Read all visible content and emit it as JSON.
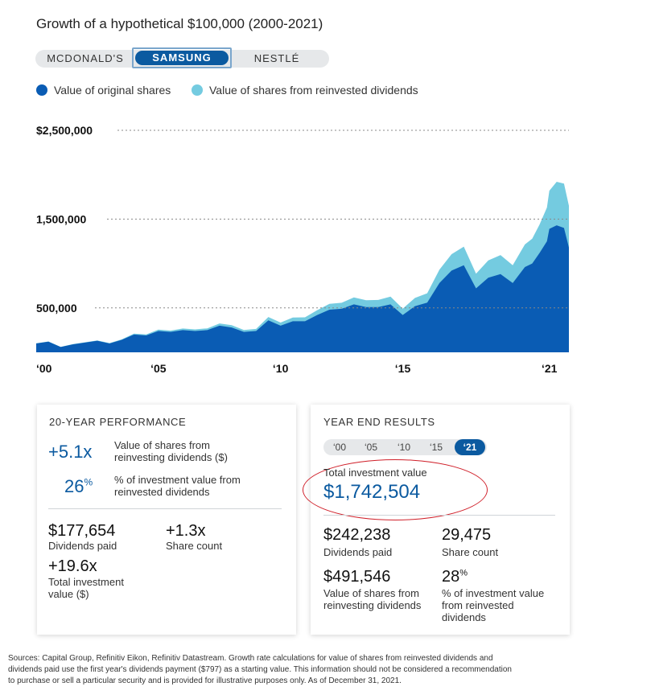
{
  "title": "Growth of a hypothetical $100,000 (2000-2021)",
  "tabs": {
    "items": [
      "MCDONALD'S",
      "SAMSUNG",
      "NESTLÉ"
    ],
    "active": "SAMSUNG"
  },
  "legend": {
    "original": "Value of original shares",
    "reinvested": "Value of shares from reinvested dividends"
  },
  "colors": {
    "original": "#0a5cb4",
    "reinvested": "#74cbe0",
    "accent": "#0b5aa0",
    "annotation": "#d0202a"
  },
  "chart_data": {
    "type": "area",
    "stacked": true,
    "y_ticks": [
      "$2,500,000",
      "1,500,000",
      "500,000"
    ],
    "y_tick_values": [
      2500000,
      1500000,
      500000
    ],
    "x_ticks": [
      "‘00",
      "‘05",
      "‘10",
      "‘15",
      "‘21"
    ],
    "x_tick_values": [
      2000,
      2005,
      2010,
      2015,
      2021
    ],
    "ylim": [
      0,
      2500000
    ],
    "xlim": [
      2000,
      2021.8
    ],
    "grid": true,
    "series": [
      {
        "name": "Value of original shares",
        "x": [
          2000,
          2000.5,
          2001,
          2001.5,
          2002,
          2002.5,
          2003,
          2003.5,
          2004,
          2004.5,
          2005,
          2005.5,
          2006,
          2006.5,
          2007,
          2007.5,
          2008,
          2008.5,
          2009,
          2009.5,
          2010,
          2010.5,
          2011,
          2011.5,
          2012,
          2012.5,
          2013,
          2013.5,
          2014,
          2014.5,
          2015,
          2015.5,
          2016,
          2016.5,
          2017,
          2017.5,
          2018,
          2018.5,
          2019,
          2019.5,
          2020,
          2020.3,
          2020.6,
          2020.9,
          2021,
          2021.3,
          2021.6,
          2021.8
        ],
        "values": [
          100000,
          120000,
          60000,
          90000,
          110000,
          130000,
          100000,
          140000,
          200000,
          190000,
          240000,
          230000,
          250000,
          240000,
          250000,
          300000,
          280000,
          230000,
          240000,
          360000,
          300000,
          350000,
          350000,
          420000,
          480000,
          490000,
          540000,
          510000,
          510000,
          540000,
          420000,
          520000,
          560000,
          780000,
          920000,
          980000,
          720000,
          840000,
          880000,
          780000,
          960000,
          1000000,
          1120000,
          1250000,
          1390000,
          1430000,
          1400000,
          1180000
        ]
      },
      {
        "name": "Value of shares from reinvested dividends",
        "x": [
          2000,
          2000.5,
          2001,
          2001.5,
          2002,
          2002.5,
          2003,
          2003.5,
          2004,
          2004.5,
          2005,
          2005.5,
          2006,
          2006.5,
          2007,
          2007.5,
          2008,
          2008.5,
          2009,
          2009.5,
          2010,
          2010.5,
          2011,
          2011.5,
          2012,
          2012.5,
          2013,
          2013.5,
          2014,
          2014.5,
          2015,
          2015.5,
          2016,
          2016.5,
          2017,
          2017.5,
          2018,
          2018.5,
          2019,
          2019.5,
          2020,
          2020.3,
          2020.6,
          2020.9,
          2021,
          2021.3,
          2021.6,
          2021.8
        ],
        "values": [
          2000,
          2500,
          1500,
          2000,
          3000,
          4000,
          4000,
          6000,
          10000,
          11000,
          15000,
          15000,
          18000,
          18000,
          20000,
          25000,
          25000,
          22000,
          24000,
          38000,
          35000,
          42000,
          44000,
          55000,
          65000,
          68000,
          78000,
          76000,
          80000,
          88000,
          72000,
          92000,
          105000,
          150000,
          185000,
          210000,
          165000,
          195000,
          215000,
          200000,
          255000,
          280000,
          320000,
          380000,
          430000,
          490000,
          500000,
          470000
        ]
      }
    ]
  },
  "left_card": {
    "title": "20-YEAR PERFORMANCE",
    "stat1_value": "+5.1x",
    "stat1_label_line1": "Value of shares from",
    "stat1_label_line2": "reinvesting dividends ($)",
    "stat2_value": "26",
    "stat2_suffix": "%",
    "stat2_label_line1": "% of investment value from",
    "stat2_label_line2": "reinvested dividends",
    "dividends_value": "$177,654",
    "dividends_label": "Dividends paid",
    "share_count_value": "+1.3x",
    "share_count_label": "Share count",
    "total_value": "+19.6x",
    "total_label_line1": "Total investment",
    "total_label_line2": "value ($)"
  },
  "right_card": {
    "title": "YEAR END RESULTS",
    "year_tabs": [
      "‘00",
      "‘05",
      "‘10",
      "‘15",
      "‘21"
    ],
    "active_year": "‘21",
    "total_label": "Total investment value",
    "total_value": "$1,742,504",
    "dividends_value": "$242,238",
    "dividends_label": "Dividends paid",
    "share_count_value": "29,475",
    "share_count_label": "Share count",
    "reinvested_value": "$491,546",
    "reinvested_label_line1": "Value of shares from",
    "reinvested_label_line2": "reinvesting dividends",
    "pct_value": "28",
    "pct_suffix": "%",
    "pct_label_line1": "% of investment value",
    "pct_label_line2": "from reinvested",
    "pct_label_line3": "dividends"
  },
  "footnote": {
    "line1": "Sources: Capital Group, Refinitiv Eikon, Refinitiv Datastream. Growth rate calculations for value of shares from reinvested dividends and",
    "line2": "dividends paid use the first year's dividends payment ($797) as a starting value. This information should not be considered a recommendation",
    "line3": "to purchase or sell a particular security and is provided for illustrative purposes only. As of December 31, 2021."
  }
}
